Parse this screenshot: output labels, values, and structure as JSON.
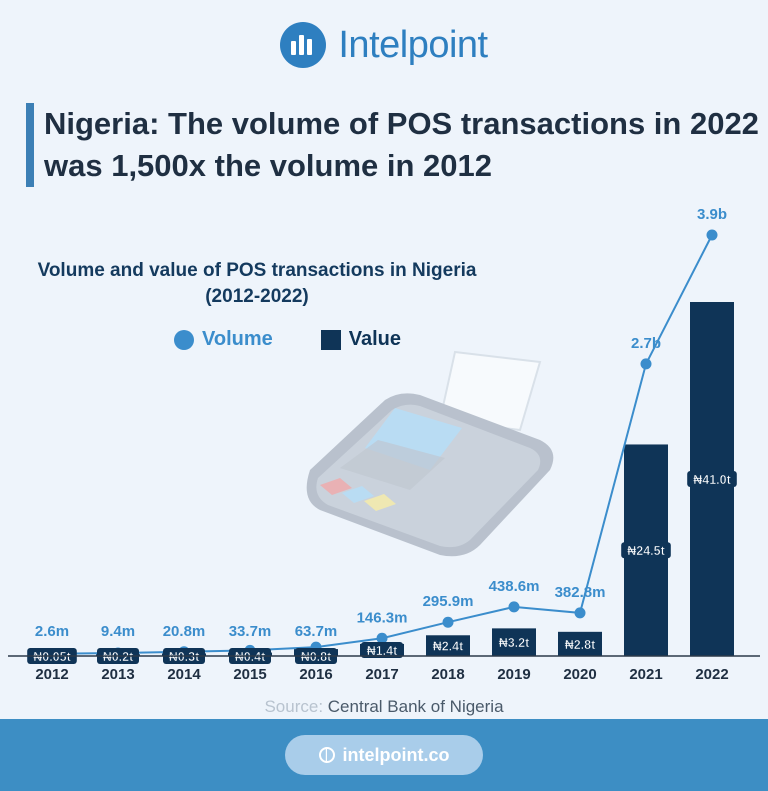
{
  "brand": {
    "name": "Intelpoint"
  },
  "headline": "Nigeria: The volume of POS transactions in 2022 was 1,500x the volume in 2012",
  "colors": {
    "volume": "#3b8dcc",
    "value": "#0f3457",
    "accent": "#2e7fc0",
    "footer": "#3d8ec4"
  },
  "chart_data": {
    "type": "bar",
    "title": "Volume and value of POS transactions in Nigeria (2012-2022)",
    "title_lines": [
      "Volume and value of POS transactions in Nigeria",
      "(2012-2022)"
    ],
    "categories": [
      "2012",
      "2013",
      "2014",
      "2015",
      "2016",
      "2017",
      "2018",
      "2019",
      "2020",
      "2021",
      "2022"
    ],
    "legend": {
      "placement": "top-left"
    },
    "series": [
      {
        "name": "Value",
        "type": "bar",
        "unit": "trillion naira",
        "values": [
          0.05,
          0.2,
          0.3,
          0.4,
          0.8,
          1.4,
          2.4,
          3.2,
          2.8,
          24.5,
          41.0
        ],
        "labels": [
          "₦0.05t",
          "₦0.2t",
          "₦0.3t",
          "₦0.4t",
          "₦0.8t",
          "₦1.4t",
          "₦2.4t",
          "₦3.2t",
          "₦2.8t",
          "₦24.5t",
          "₦41.0t"
        ]
      },
      {
        "name": "Volume",
        "type": "line",
        "unit": "million transactions",
        "values": [
          2.6,
          9.4,
          20.8,
          33.7,
          63.7,
          146.3,
          295.9,
          438.6,
          382.8,
          2700,
          3900
        ],
        "labels": [
          "2.6m",
          "9.4m",
          "20.8m",
          "33.7m",
          "63.7m",
          "146.3m",
          "295.9m",
          "438.6m",
          "382.8m",
          "2.7b",
          "3.9b"
        ]
      }
    ],
    "grid": false
  },
  "source": {
    "prefix": "Source:",
    "name": "Central Bank of Nigeria"
  },
  "footer": {
    "url": "intelpoint.co"
  }
}
